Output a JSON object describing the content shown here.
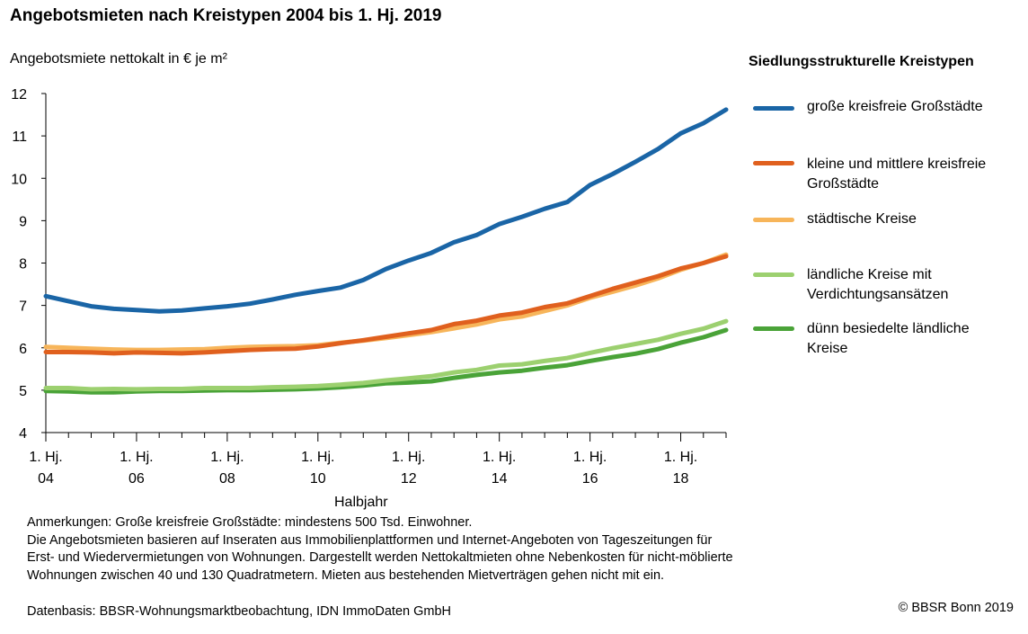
{
  "chart_data": {
    "type": "line",
    "title": "Angebotsmieten nach Kreistypen 2004 bis 1. Hj. 2019",
    "ylabel": "Angebotsmiete nettokalt in € je m²",
    "xlabel": "Halbjahr",
    "ylim": [
      4,
      12
    ],
    "yticks": [
      "4",
      "5",
      "6",
      "7",
      "8",
      "9",
      "10",
      "11",
      "12"
    ],
    "x": [
      "1. Hj. 2004",
      "2. Hj. 2004",
      "1. Hj. 2005",
      "2. Hj. 2005",
      "1. Hj. 2006",
      "2. Hj. 2006",
      "1. Hj. 2007",
      "2. Hj. 2007",
      "1. Hj. 2008",
      "2. Hj. 2008",
      "1. Hj. 2009",
      "2. Hj. 2009",
      "1. Hj. 2010",
      "2. Hj. 2010",
      "1. Hj. 2011",
      "2. Hj. 2011",
      "1. Hj. 2012",
      "2. Hj. 2012",
      "1. Hj. 2013",
      "2. Hj. 2013",
      "1. Hj. 2014",
      "2. Hj. 2014",
      "1. Hj. 2015",
      "2. Hj. 2015",
      "1. Hj. 2016",
      "2. Hj. 2016",
      "1. Hj. 2017",
      "2. Hj. 2017",
      "1. Hj. 2018",
      "2. Hj. 2018",
      "1. Hj. 2019"
    ],
    "xtick_labels": [
      {
        "line1": "1. Hj.",
        "line2": "04"
      },
      {
        "line1": "1. Hj.",
        "line2": "06"
      },
      {
        "line1": "1. Hj.",
        "line2": "08"
      },
      {
        "line1": "1. Hj.",
        "line2": "10"
      },
      {
        "line1": "1. Hj.",
        "line2": "12"
      },
      {
        "line1": "1. Hj.",
        "line2": "14"
      },
      {
        "line1": "1. Hj.",
        "line2": "16"
      },
      {
        "line1": "1. Hj.",
        "line2": "18"
      }
    ],
    "grid": false,
    "legend_title": "Siedlungsstrukturelle Kreistypen",
    "legend_position": "right",
    "series": [
      {
        "name": "große kreisfreie Großstädte",
        "color": "#1a65a6",
        "values": [
          7.22,
          7.1,
          6.98,
          6.92,
          6.89,
          6.86,
          6.88,
          6.93,
          6.98,
          7.04,
          7.14,
          7.25,
          7.34,
          7.42,
          7.6,
          7.86,
          8.06,
          8.24,
          8.49,
          8.66,
          8.92,
          9.09,
          9.28,
          9.44,
          9.84,
          10.1,
          10.39,
          10.69,
          11.06,
          11.3,
          11.62
        ]
      },
      {
        "name": "kleine und mittlere kreisfreie Großstädte",
        "color": "#e0601e",
        "values": [
          5.9,
          5.9,
          5.89,
          5.87,
          5.89,
          5.88,
          5.87,
          5.89,
          5.92,
          5.95,
          5.97,
          5.98,
          6.03,
          6.11,
          6.18,
          6.26,
          6.34,
          6.42,
          6.56,
          6.64,
          6.76,
          6.83,
          6.96,
          7.05,
          7.22,
          7.39,
          7.54,
          7.69,
          7.87,
          8.0,
          8.16
        ]
      },
      {
        "name": "städtische Kreise",
        "color": "#f7b55a",
        "values": [
          6.02,
          6.0,
          5.98,
          5.96,
          5.95,
          5.95,
          5.96,
          5.97,
          6.0,
          6.02,
          6.03,
          6.04,
          6.06,
          6.12,
          6.17,
          6.23,
          6.3,
          6.37,
          6.46,
          6.55,
          6.67,
          6.74,
          6.87,
          7.0,
          7.18,
          7.32,
          7.47,
          7.64,
          7.84,
          8.0,
          8.2
        ]
      },
      {
        "name": "ländliche Kreise mit Verdichtungsansätzen",
        "color": "#9cd06f",
        "values": [
          5.05,
          5.05,
          5.02,
          5.03,
          5.02,
          5.03,
          5.03,
          5.05,
          5.05,
          5.05,
          5.07,
          5.08,
          5.1,
          5.13,
          5.17,
          5.23,
          5.28,
          5.33,
          5.42,
          5.48,
          5.58,
          5.61,
          5.69,
          5.76,
          5.88,
          5.99,
          6.09,
          6.19,
          6.33,
          6.45,
          6.63
        ]
      },
      {
        "name": "dünn besiedelte ländliche Kreise",
        "color": "#4aa338",
        "values": [
          4.98,
          4.97,
          4.95,
          4.95,
          4.97,
          4.98,
          4.98,
          4.99,
          5.0,
          5.0,
          5.01,
          5.02,
          5.04,
          5.07,
          5.11,
          5.16,
          5.18,
          5.21,
          5.29,
          5.36,
          5.42,
          5.46,
          5.53,
          5.59,
          5.69,
          5.78,
          5.86,
          5.97,
          6.12,
          6.25,
          6.42
        ]
      }
    ]
  },
  "legend": {
    "title": "Siedlungsstrukturelle Kreistypen",
    "items": [
      {
        "line1": "große kreisfreie Großstädte",
        "line2": ""
      },
      {
        "line1": "kleine und mittlere kreisfreie",
        "line2": "Großstädte"
      },
      {
        "line1": "städtische Kreise",
        "line2": ""
      },
      {
        "line1": "ländliche Kreise mit",
        "line2": "Verdichtungsansätzen"
      },
      {
        "line1": "dünn besiedelte ländliche",
        "line2": "Kreise"
      }
    ]
  },
  "notes": {
    "line1": "Anmerkungen: Große kreisfreie Großstädte: mindestens 500 Tsd. Einwohner.",
    "line2": "Die Angebotsmieten basieren auf Inseraten aus Immobilienplattformen und Internet-Angeboten von Tageszeitungen für",
    "line3": "Erst- und Wiedervermietungen von Wohnungen. Dargestellt werden Nettokaltmieten ohne Nebenkosten für nicht-möblierte",
    "line4": "Wohnungen zwischen 40 und 130 Quadratmetern. Mieten aus bestehenden Mietverträgen gehen nicht mit ein."
  },
  "source": "Datenbasis: BBSR-Wohnungsmarktbeobachtung, IDN ImmoDaten GmbH",
  "copyright": "© BBSR Bonn 2019"
}
